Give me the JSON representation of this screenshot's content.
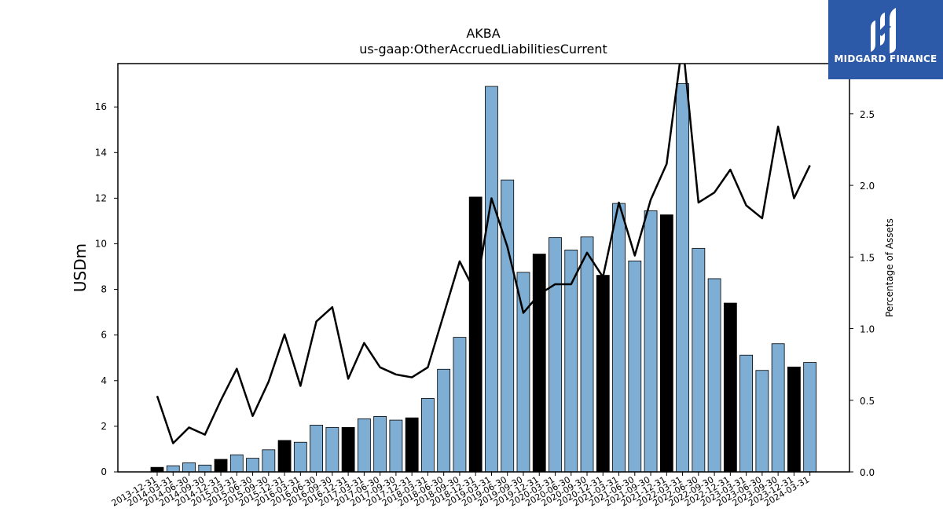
{
  "chart_data": {
    "type": "bar",
    "title": "AKBA",
    "subtitle": "us-gaap:OtherAccruedLiabilitiesCurrent",
    "ylabel": "USDm",
    "y2label": "Percentage of Assets",
    "ylim": [
      0,
      17.9
    ],
    "y2lim": [
      0,
      2.85
    ],
    "yticks": [
      0,
      2,
      4,
      6,
      8,
      10,
      12,
      14,
      16
    ],
    "y2ticks": [
      "0.0",
      "0.5",
      "1.0",
      "1.5",
      "2.0",
      "2.5"
    ],
    "categories": [
      "2013-12-31",
      "2014-03-31",
      "2014-06-30",
      "2014-09-30",
      "2014-12-31",
      "2015-03-31",
      "2015-06-30",
      "2015-09-30",
      "2015-12-31",
      "2016-03-31",
      "2016-06-30",
      "2016-09-30",
      "2016-12-31",
      "2017-03-31",
      "2017-06-30",
      "2017-09-30",
      "2017-12-31",
      "2018-03-31",
      "2018-06-30",
      "2018-09-30",
      "2018-12-31",
      "2019-03-31",
      "2019-06-30",
      "2019-09-30",
      "2019-12-31",
      "2020-03-31",
      "2020-06-30",
      "2020-09-30",
      "2020-12-31",
      "2021-03-31",
      "2021-06-30",
      "2021-09-30",
      "2021-12-31",
      "2022-03-31",
      "2022-06-30",
      "2022-09-30",
      "2022-12-31",
      "2023-03-31",
      "2023-06-30",
      "2023-09-30",
      "2023-12-31",
      "2024-03-31"
    ],
    "series": [
      {
        "values": [
          0.2,
          0.27,
          0.4,
          0.3,
          0.55,
          0.75,
          0.6,
          0.97,
          1.38,
          1.3,
          2.05,
          1.95,
          1.95,
          2.33,
          2.43,
          2.27,
          2.37,
          3.22,
          4.5,
          5.9,
          12.05,
          16.9,
          12.8,
          8.75,
          9.55,
          10.27,
          9.73,
          10.3,
          8.62,
          11.77,
          9.25,
          11.45,
          11.27,
          17.02,
          9.8,
          8.47,
          7.4,
          5.12,
          4.45,
          5.62,
          4.6,
          4.8
        ],
        "colors": [
          "#000000",
          "#7eaed3",
          "#7eaed3",
          "#7eaed3",
          "#000000",
          "#7eaed3",
          "#7eaed3",
          "#7eaed3",
          "#000000",
          "#7eaed3",
          "#7eaed3",
          "#7eaed3",
          "#000000",
          "#7eaed3",
          "#7eaed3",
          "#7eaed3",
          "#000000",
          "#7eaed3",
          "#7eaed3",
          "#7eaed3",
          "#000000",
          "#7eaed3",
          "#7eaed3",
          "#7eaed3",
          "#000000",
          "#7eaed3",
          "#7eaed3",
          "#7eaed3",
          "#000000",
          "#7eaed3",
          "#7eaed3",
          "#7eaed3",
          "#000000",
          "#7eaed3",
          "#7eaed3",
          "#7eaed3",
          "#000000",
          "#7eaed3",
          "#7eaed3",
          "#7eaed3",
          "#000000",
          "#7eaed3"
        ]
      },
      {
        "type": "line",
        "axis": "right",
        "values": [
          0.53,
          0.2,
          0.31,
          0.26,
          0.5,
          0.72,
          0.39,
          0.63,
          0.96,
          0.6,
          1.05,
          1.15,
          0.65,
          0.9,
          0.73,
          0.68,
          0.66,
          0.73,
          1.1,
          1.47,
          1.25,
          1.91,
          1.57,
          1.11,
          1.24,
          1.31,
          1.31,
          1.53,
          1.36,
          1.88,
          1.51,
          1.9,
          2.15,
          3.0,
          1.88,
          1.95,
          2.11,
          1.86,
          1.77,
          2.41,
          1.91,
          2.14
        ]
      }
    ],
    "colors": {
      "bar": "#7eaed3",
      "bar_highlight": "#000000",
      "line": "#000000"
    },
    "grid": false,
    "legend": "none"
  },
  "logo": {
    "text": "MIDGARD FINANCE",
    "color": "#2d5aa8"
  }
}
